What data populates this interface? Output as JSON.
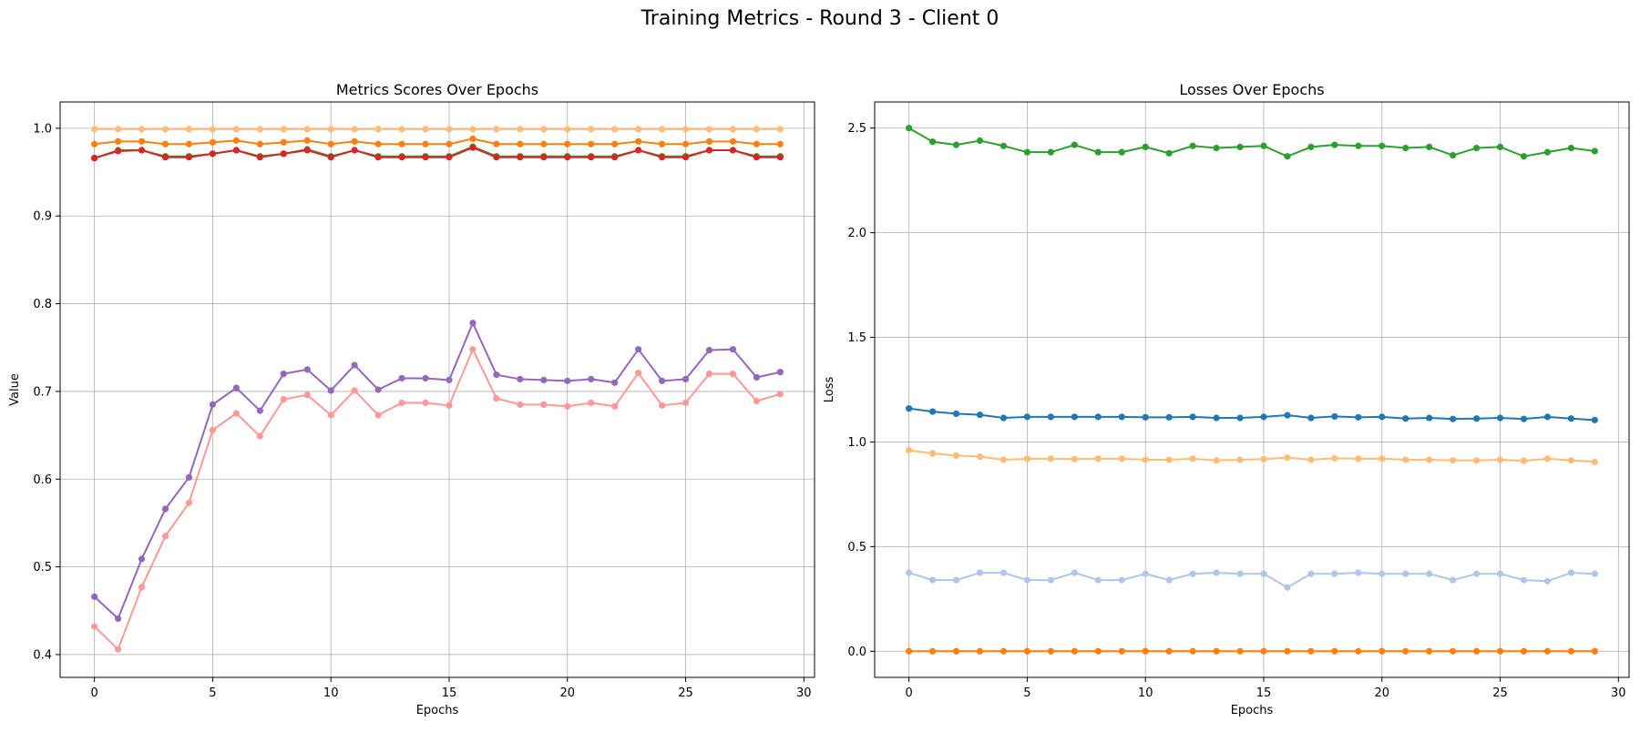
{
  "figure": {
    "suptitle": "Training Metrics - Round 3 - Client 0"
  },
  "chart_data": [
    {
      "type": "line",
      "title": "Metrics Scores Over Epochs",
      "xlabel": "Epochs",
      "ylabel": "Value",
      "xlim": [
        -1.45,
        30.45
      ],
      "ylim": [
        0.374,
        1.03
      ],
      "xticks": [
        0,
        5,
        10,
        15,
        20,
        25,
        30
      ],
      "yticks": [
        0.4,
        0.5,
        0.6,
        0.7,
        0.8,
        0.9,
        1.0
      ],
      "grid": true,
      "x": [
        0,
        1,
        2,
        3,
        4,
        5,
        6,
        7,
        8,
        9,
        10,
        11,
        12,
        13,
        14,
        15,
        16,
        17,
        18,
        19,
        20,
        21,
        22,
        23,
        24,
        25,
        26,
        27,
        28,
        29
      ],
      "series": [
        {
          "color": "#ffbb78",
          "values": [
            0.999,
            0.999,
            0.999,
            0.999,
            0.999,
            0.999,
            0.999,
            0.999,
            0.999,
            0.999,
            0.999,
            0.999,
            0.999,
            0.999,
            0.999,
            0.999,
            0.999,
            0.999,
            0.999,
            0.999,
            0.999,
            0.999,
            0.999,
            0.999,
            0.999,
            0.999,
            0.999,
            0.999,
            0.999,
            0.999
          ]
        },
        {
          "color": "#ff7f0e",
          "values": [
            0.982,
            0.985,
            0.985,
            0.982,
            0.982,
            0.984,
            0.986,
            0.982,
            0.984,
            0.986,
            0.982,
            0.985,
            0.982,
            0.982,
            0.982,
            0.982,
            0.988,
            0.982,
            0.982,
            0.982,
            0.982,
            0.982,
            0.982,
            0.985,
            0.982,
            0.982,
            0.985,
            0.985,
            0.982,
            0.982
          ]
        },
        {
          "color": "#2ca02c",
          "values": [
            0.966,
            0.975,
            0.975,
            0.968,
            0.968,
            0.971,
            0.975,
            0.968,
            0.971,
            0.976,
            0.968,
            0.975,
            0.968,
            0.968,
            0.968,
            0.968,
            0.979,
            0.968,
            0.968,
            0.968,
            0.968,
            0.968,
            0.968,
            0.975,
            0.968,
            0.968,
            0.975,
            0.975,
            0.968,
            0.968
          ]
        },
        {
          "color": "#d62728",
          "values": [
            0.966,
            0.974,
            0.975,
            0.967,
            0.967,
            0.971,
            0.975,
            0.967,
            0.971,
            0.975,
            0.967,
            0.975,
            0.967,
            0.967,
            0.967,
            0.967,
            0.978,
            0.967,
            0.967,
            0.967,
            0.967,
            0.967,
            0.967,
            0.975,
            0.967,
            0.967,
            0.975,
            0.975,
            0.967,
            0.967
          ]
        },
        {
          "color": "#9467bd",
          "values": [
            0.466,
            0.441,
            0.509,
            0.566,
            0.602,
            0.685,
            0.704,
            0.678,
            0.72,
            0.725,
            0.701,
            0.73,
            0.702,
            0.715,
            0.715,
            0.713,
            0.778,
            0.719,
            0.714,
            0.713,
            0.712,
            0.714,
            0.71,
            0.748,
            0.712,
            0.714,
            0.747,
            0.748,
            0.716,
            0.722
          ]
        },
        {
          "color": "#ff9896",
          "values": [
            0.432,
            0.406,
            0.477,
            0.535,
            0.573,
            0.656,
            0.675,
            0.649,
            0.691,
            0.696,
            0.673,
            0.701,
            0.673,
            0.687,
            0.687,
            0.684,
            0.748,
            0.692,
            0.685,
            0.685,
            0.683,
            0.687,
            0.683,
            0.721,
            0.684,
            0.687,
            0.72,
            0.72,
            0.689,
            0.697
          ]
        }
      ]
    },
    {
      "type": "line",
      "title": "Losses Over Epochs",
      "xlabel": "Epochs",
      "ylabel": "Loss",
      "xlim": [
        -1.45,
        30.45
      ],
      "ylim": [
        -0.125,
        2.625
      ],
      "xticks": [
        0,
        5,
        10,
        15,
        20,
        25,
        30
      ],
      "yticks": [
        0.0,
        0.5,
        1.0,
        1.5,
        2.0,
        2.5
      ],
      "grid": true,
      "x": [
        0,
        1,
        2,
        3,
        4,
        5,
        6,
        7,
        8,
        9,
        10,
        11,
        12,
        13,
        14,
        15,
        16,
        17,
        18,
        19,
        20,
        21,
        22,
        23,
        24,
        25,
        26,
        27,
        28,
        29
      ],
      "series": [
        {
          "color": "#2ca02c",
          "values": [
            2.5,
            2.435,
            2.42,
            2.44,
            2.415,
            2.385,
            2.385,
            2.42,
            2.385,
            2.385,
            2.41,
            2.38,
            2.415,
            2.405,
            2.41,
            2.415,
            2.365,
            2.41,
            2.42,
            2.415,
            2.415,
            2.405,
            2.41,
            2.37,
            2.405,
            2.41,
            2.365,
            2.385,
            2.405,
            2.39
          ]
        },
        {
          "color": "#1f77b4",
          "values": [
            1.16,
            1.145,
            1.135,
            1.13,
            1.115,
            1.12,
            1.12,
            1.12,
            1.12,
            1.12,
            1.118,
            1.118,
            1.12,
            1.115,
            1.115,
            1.12,
            1.128,
            1.115,
            1.122,
            1.118,
            1.12,
            1.112,
            1.115,
            1.11,
            1.112,
            1.115,
            1.11,
            1.12,
            1.112,
            1.105
          ]
        },
        {
          "color": "#ffbb78",
          "values": [
            0.96,
            0.945,
            0.935,
            0.93,
            0.915,
            0.92,
            0.92,
            0.918,
            0.92,
            0.92,
            0.915,
            0.915,
            0.92,
            0.912,
            0.915,
            0.918,
            0.925,
            0.915,
            0.922,
            0.92,
            0.92,
            0.915,
            0.915,
            0.912,
            0.912,
            0.915,
            0.91,
            0.92,
            0.912,
            0.905
          ]
        },
        {
          "color": "#aec7e8",
          "values": [
            0.375,
            0.34,
            0.34,
            0.375,
            0.375,
            0.34,
            0.34,
            0.375,
            0.34,
            0.34,
            0.37,
            0.34,
            0.37,
            0.375,
            0.37,
            0.37,
            0.305,
            0.37,
            0.37,
            0.375,
            0.37,
            0.37,
            0.37,
            0.34,
            0.37,
            0.37,
            0.34,
            0.335,
            0.375,
            0.37
          ]
        },
        {
          "color": "#ff7f0e",
          "values": [
            0,
            0,
            0,
            0,
            0,
            0,
            0,
            0,
            0,
            0,
            0,
            0,
            0,
            0,
            0,
            0,
            0,
            0,
            0,
            0,
            0,
            0,
            0,
            0,
            0,
            0,
            0,
            0,
            0,
            0
          ]
        }
      ]
    }
  ]
}
